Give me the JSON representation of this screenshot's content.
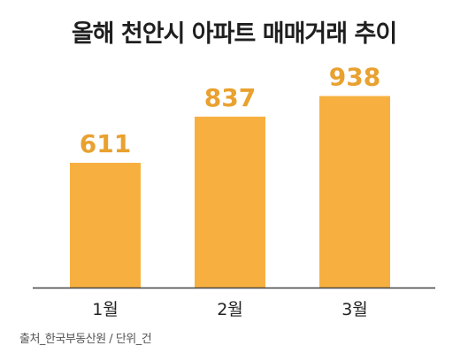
{
  "title": "올해 천안시 아파트 매매거래 추이",
  "source": "출처_한국부동산원 / 단위_건",
  "colors": {
    "bar": "#F7B040",
    "value_label": "#E9A12F",
    "axis": "#444444",
    "tick_label": "#222222"
  },
  "chart_data": {
    "type": "bar",
    "title": "올해 천안시 아파트 매매거래 추이",
    "xlabel": "",
    "ylabel": "",
    "categories": [
      "1월",
      "2월",
      "3월"
    ],
    "values": [
      611,
      837,
      938
    ],
    "data_labels": [
      "611",
      "837",
      "938"
    ],
    "ylim": [
      0,
      1000
    ],
    "grid": false,
    "legend": "none"
  }
}
